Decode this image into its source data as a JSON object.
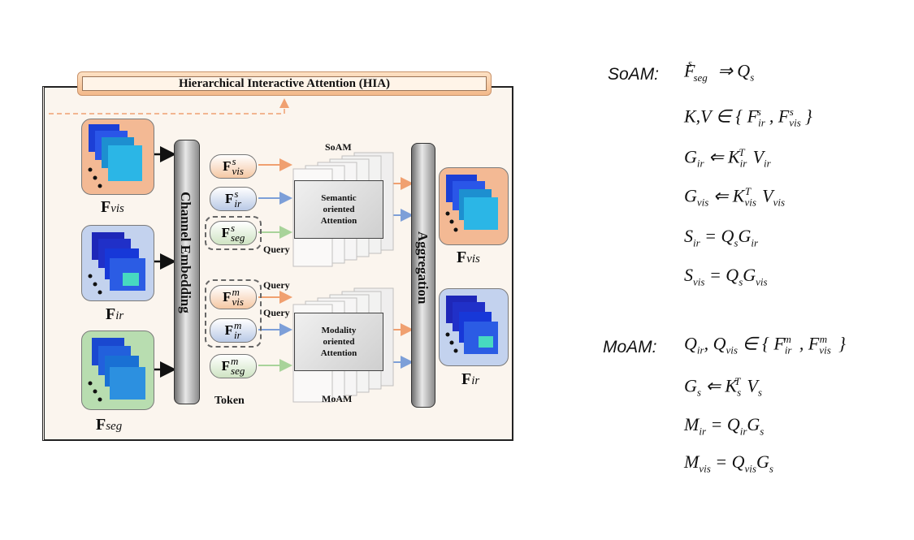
{
  "diagram": {
    "title": "Hierarchical Interactive Attention (HIA)",
    "inputs": [
      {
        "label_main": "F",
        "label_sub": "vis"
      },
      {
        "label_main": "F",
        "label_sub": "ir"
      },
      {
        "label_main": "F",
        "label_sub": "seg"
      }
    ],
    "outputs": [
      {
        "label_main": "F",
        "label_sub": "vis"
      },
      {
        "label_main": "F",
        "label_sub": "ir"
      }
    ],
    "channel_embedding": "Channel Embedding",
    "aggregation": "Aggregation",
    "token_label": "Token",
    "query_label": "Query",
    "soam_tokens": [
      {
        "main": "F",
        "sup": "s",
        "sub": "vis"
      },
      {
        "main": "F",
        "sup": "s",
        "sub": "ir"
      },
      {
        "main": "F",
        "sup": "s",
        "sub": "seg"
      }
    ],
    "moam_tokens": [
      {
        "main": "F",
        "sup": "m",
        "sub": "vis"
      },
      {
        "main": "F",
        "sup": "m",
        "sub": "ir"
      },
      {
        "main": "F",
        "sup": "m",
        "sub": "seg"
      }
    ],
    "soam_label": "SoAM",
    "moam_label": "MoAM",
    "soam_box": [
      "Semantic",
      "oriented",
      "Attention"
    ],
    "moam_box": [
      "Modality",
      "oriented",
      "Attention"
    ],
    "colors": {
      "vis": "#f0a070",
      "ir": "#7d9fd8",
      "seg": "#a8d39a",
      "dashed": "#f0a070"
    }
  },
  "equations": {
    "soam_head": "SoAM:",
    "moam_head": "MoAM:"
  }
}
